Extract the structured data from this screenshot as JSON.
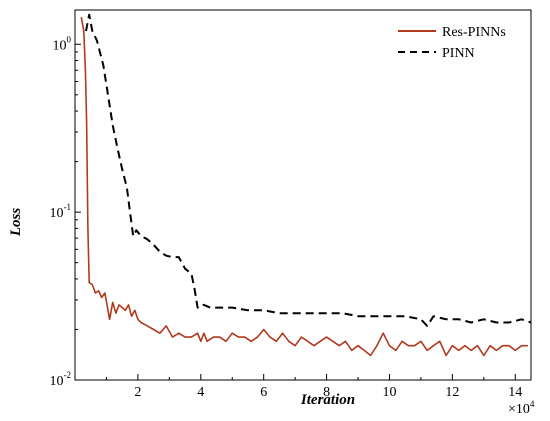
{
  "chart_data": {
    "type": "line",
    "xlabel": "Iteration",
    "ylabel": "Loss",
    "x_multiplier": "×10",
    "x_multiplier_exp": "4",
    "xlim": [
      0,
      14.5
    ],
    "ylim": [
      0.01,
      1.6
    ],
    "yscale": "log",
    "x_ticks": [
      2,
      4,
      6,
      8,
      10,
      12,
      14
    ],
    "y_ticks": [
      {
        "value": 1,
        "base": "10",
        "exp": "0"
      },
      {
        "value": 0.1,
        "base": "10",
        "exp": "-1"
      },
      {
        "value": 0.01,
        "base": "10",
        "exp": "-2"
      }
    ],
    "legend_position": "top-right",
    "grid": false,
    "series": [
      {
        "name": "Res-PINNs",
        "color": "#b03a1e",
        "style": "solid",
        "points": [
          [
            0.2,
            1.45
          ],
          [
            0.28,
            1.2
          ],
          [
            0.33,
            0.7
          ],
          [
            0.37,
            0.35
          ],
          [
            0.41,
            0.08
          ],
          [
            0.45,
            0.038
          ],
          [
            0.55,
            0.037
          ],
          [
            0.65,
            0.033
          ],
          [
            0.75,
            0.034
          ],
          [
            0.85,
            0.031
          ],
          [
            0.95,
            0.033
          ],
          [
            1.05,
            0.026
          ],
          [
            1.1,
            0.023
          ],
          [
            1.2,
            0.029
          ],
          [
            1.3,
            0.025
          ],
          [
            1.4,
            0.028
          ],
          [
            1.5,
            0.027
          ],
          [
            1.6,
            0.026
          ],
          [
            1.7,
            0.028
          ],
          [
            1.8,
            0.024
          ],
          [
            1.9,
            0.026
          ],
          [
            2.0,
            0.023
          ],
          [
            2.1,
            0.022
          ],
          [
            2.3,
            0.021
          ],
          [
            2.5,
            0.02
          ],
          [
            2.7,
            0.019
          ],
          [
            2.9,
            0.021
          ],
          [
            3.1,
            0.018
          ],
          [
            3.3,
            0.019
          ],
          [
            3.5,
            0.018
          ],
          [
            3.7,
            0.018
          ],
          [
            3.9,
            0.019
          ],
          [
            4.0,
            0.017
          ],
          [
            4.1,
            0.019
          ],
          [
            4.2,
            0.017
          ],
          [
            4.4,
            0.018
          ],
          [
            4.6,
            0.018
          ],
          [
            4.8,
            0.017
          ],
          [
            5.0,
            0.019
          ],
          [
            5.2,
            0.018
          ],
          [
            5.4,
            0.018
          ],
          [
            5.6,
            0.017
          ],
          [
            5.8,
            0.018
          ],
          [
            6.0,
            0.02
          ],
          [
            6.2,
            0.018
          ],
          [
            6.4,
            0.017
          ],
          [
            6.6,
            0.019
          ],
          [
            6.8,
            0.017
          ],
          [
            7.0,
            0.016
          ],
          [
            7.2,
            0.018
          ],
          [
            7.4,
            0.017
          ],
          [
            7.6,
            0.016
          ],
          [
            7.8,
            0.017
          ],
          [
            8.0,
            0.018
          ],
          [
            8.2,
            0.017
          ],
          [
            8.4,
            0.016
          ],
          [
            8.6,
            0.017
          ],
          [
            8.8,
            0.015
          ],
          [
            9.0,
            0.016
          ],
          [
            9.2,
            0.015
          ],
          [
            9.4,
            0.014
          ],
          [
            9.6,
            0.016
          ],
          [
            9.8,
            0.019
          ],
          [
            10.0,
            0.016
          ],
          [
            10.2,
            0.015
          ],
          [
            10.4,
            0.017
          ],
          [
            10.6,
            0.016
          ],
          [
            10.8,
            0.016
          ],
          [
            11.0,
            0.017
          ],
          [
            11.2,
            0.015
          ],
          [
            11.4,
            0.016
          ],
          [
            11.6,
            0.017
          ],
          [
            11.8,
            0.014
          ],
          [
            12.0,
            0.016
          ],
          [
            12.2,
            0.015
          ],
          [
            12.4,
            0.016
          ],
          [
            12.6,
            0.015
          ],
          [
            12.8,
            0.016
          ],
          [
            13.0,
            0.014
          ],
          [
            13.2,
            0.016
          ],
          [
            13.4,
            0.015
          ],
          [
            13.6,
            0.016
          ],
          [
            13.8,
            0.016
          ],
          [
            14.0,
            0.015
          ],
          [
            14.2,
            0.016
          ],
          [
            14.4,
            0.016
          ]
        ]
      },
      {
        "name": "PINN",
        "color": "#000000",
        "style": "dashed",
        "points": [
          [
            0.35,
            1.2
          ],
          [
            0.45,
            1.5
          ],
          [
            0.55,
            1.2
          ],
          [
            0.7,
            1.05
          ],
          [
            0.9,
            0.75
          ],
          [
            1.05,
            0.5
          ],
          [
            1.2,
            0.33
          ],
          [
            1.35,
            0.24
          ],
          [
            1.5,
            0.18
          ],
          [
            1.65,
            0.14
          ],
          [
            1.75,
            0.1
          ],
          [
            1.85,
            0.072
          ],
          [
            1.95,
            0.078
          ],
          [
            2.1,
            0.072
          ],
          [
            2.3,
            0.069
          ],
          [
            2.5,
            0.064
          ],
          [
            2.7,
            0.058
          ],
          [
            2.9,
            0.055
          ],
          [
            3.1,
            0.054
          ],
          [
            3.3,
            0.054
          ],
          [
            3.5,
            0.046
          ],
          [
            3.7,
            0.043
          ],
          [
            3.8,
            0.035
          ],
          [
            3.9,
            0.027
          ],
          [
            4.0,
            0.028
          ],
          [
            4.1,
            0.028
          ],
          [
            4.3,
            0.027
          ],
          [
            4.6,
            0.027
          ],
          [
            5.0,
            0.027
          ],
          [
            5.5,
            0.026
          ],
          [
            6.0,
            0.026
          ],
          [
            6.5,
            0.025
          ],
          [
            7.0,
            0.025
          ],
          [
            7.5,
            0.025
          ],
          [
            8.0,
            0.025
          ],
          [
            8.5,
            0.025
          ],
          [
            9.0,
            0.024
          ],
          [
            9.5,
            0.024
          ],
          [
            10.0,
            0.024
          ],
          [
            10.5,
            0.024
          ],
          [
            11.0,
            0.023
          ],
          [
            11.2,
            0.021
          ],
          [
            11.4,
            0.024
          ],
          [
            11.8,
            0.023
          ],
          [
            12.2,
            0.023
          ],
          [
            12.6,
            0.022
          ],
          [
            13.0,
            0.023
          ],
          [
            13.4,
            0.022
          ],
          [
            13.8,
            0.022
          ],
          [
            14.2,
            0.023
          ],
          [
            14.5,
            0.022
          ]
        ]
      }
    ]
  }
}
